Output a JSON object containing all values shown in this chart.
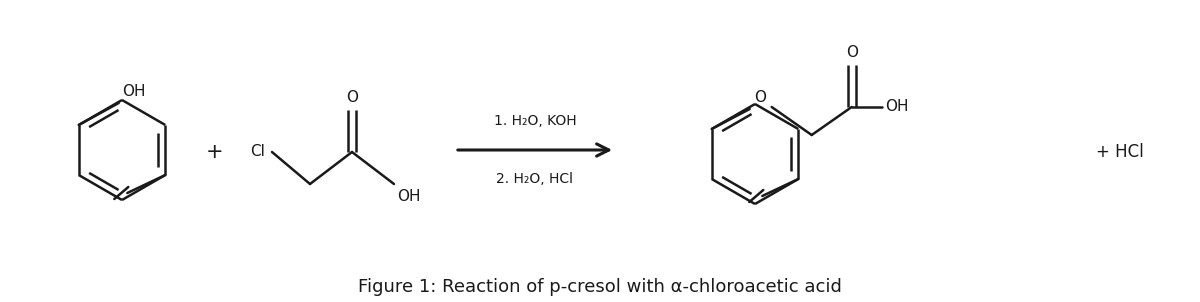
{
  "figure_width": 12.0,
  "figure_height": 3.02,
  "dpi": 100,
  "background_color": "#ffffff",
  "line_color": "#1a1a1a",
  "line_width": 1.8,
  "caption": "Figure 1: Reaction of p-cresol with α-chloroacetic acid",
  "caption_fontsize": 13,
  "reaction_conditions_1": "1. H₂O, KOH",
  "reaction_conditions_2": "2. H₂O, HCl",
  "arrow_color": "#1a1a1a"
}
